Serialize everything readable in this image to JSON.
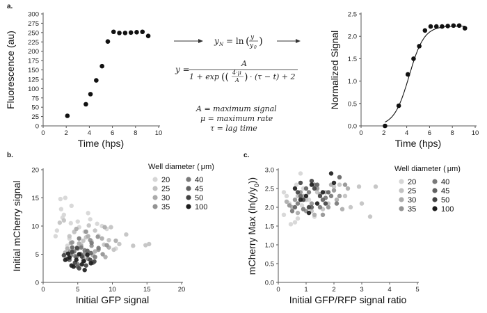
{
  "panel_labels": {
    "a": "a.",
    "b": "b.",
    "c": "c."
  },
  "equations": {
    "yN_lhs": "y",
    "yN_sub": "N",
    "yN_rhs": "= ln",
    "y_over": "y",
    "y0_under": "y",
    "y0_sub": "0",
    "y_lhs": "y =",
    "numer": "A",
    "denom_1": "1 + exp",
    "frac_n": "4·μ",
    "frac_d": "A",
    "denom_2": "· (τ − t) + 2",
    "def_A": "A = maximum signal",
    "def_mu": "μ = maximum rate",
    "def_tau": "τ = lag time"
  },
  "chart_data": [
    {
      "id": "a-left",
      "type": "scatter",
      "xlabel": "Time (hps)",
      "ylabel": "Fluorescence (au)",
      "xlim": [
        0,
        10
      ],
      "ylim": [
        0,
        300
      ],
      "xticks": [
        0,
        2,
        4,
        6,
        8,
        10
      ],
      "yticks": [
        0,
        25,
        50,
        75,
        100,
        125,
        150,
        175,
        200,
        225,
        250,
        275,
        300
      ],
      "x": [
        2.1,
        3.7,
        4.1,
        4.6,
        5.1,
        5.6,
        6.1,
        6.6,
        7.1,
        7.6,
        8.1,
        8.6,
        9.1
      ],
      "y": [
        27,
        58,
        85,
        122,
        160,
        226,
        252,
        249,
        249,
        250,
        251,
        252,
        241
      ]
    },
    {
      "id": "a-right",
      "type": "scatter+line",
      "xlabel": "Time (hps)",
      "ylabel": "Normalized Signal",
      "xlim": [
        0,
        10
      ],
      "ylim": [
        0,
        2.5
      ],
      "xticks": [
        0,
        2,
        4,
        6,
        8,
        10
      ],
      "yticks": [
        0.0,
        0.5,
        1.0,
        1.5,
        2.0,
        2.5
      ],
      "x": [
        2.1,
        3.3,
        4.1,
        4.6,
        5.1,
        5.6,
        6.1,
        6.6,
        7.1,
        7.6,
        8.1,
        8.6,
        9.1
      ],
      "y": [
        0.0,
        0.45,
        1.15,
        1.5,
        1.78,
        2.13,
        2.22,
        2.22,
        2.22,
        2.23,
        2.24,
        2.24,
        2.18
      ],
      "fit": {
        "A": 2.23,
        "mu": 0.85,
        "tau": 2.9,
        "t_range": [
          2.1,
          9.1
        ]
      }
    },
    {
      "id": "b",
      "type": "scatter",
      "xlabel": "Initial GFP signal",
      "ylabel": "Initial mCherry signal",
      "xlim": [
        0,
        20
      ],
      "ylim": [
        0,
        20
      ],
      "xticks": [
        0,
        5,
        10,
        15,
        20
      ],
      "yticks": [
        0,
        5,
        10,
        15,
        20
      ],
      "legend_title": "Well diameter (μm)",
      "legend_title_pre": "Well diameter (",
      "legend_title_unit": "μm",
      "legend_title_post": ")",
      "legend_location": "top-right",
      "series": [
        {
          "name": "20",
          "color": "#d6d6d6",
          "x": [
            2.5,
            3.2,
            4.1,
            3.0,
            6.5,
            7.8,
            5.2,
            2.8,
            8.5,
            4.5,
            3.8,
            9.2,
            6.0,
            2.0,
            5.5,
            7.0,
            4.0,
            3.5,
            1.8,
            6.8,
            10.5,
            8.0,
            2.6,
            5.0
          ],
          "y": [
            14.8,
            15.0,
            13.6,
            12.0,
            12.3,
            10.4,
            9.8,
            11.5,
            10.0,
            8.9,
            7.8,
            9.5,
            9.0,
            9.2,
            6.8,
            7.3,
            10.5,
            6.5,
            8.2,
            11.2,
            6.0,
            8.3,
            13.0,
            10.8
          ]
        },
        {
          "name": "25",
          "color": "#c2c2c2",
          "x": [
            3.0,
            4.5,
            6.2,
            9.5,
            11.0,
            13.0,
            14.8,
            3.8,
            7.5,
            5.8,
            10.2,
            12.0,
            2.4,
            8.8,
            6.6,
            4.9,
            15.3,
            9.8
          ],
          "y": [
            11.0,
            9.0,
            8.0,
            7.5,
            6.8,
            6.5,
            6.6,
            8.2,
            9.2,
            7.4,
            5.8,
            8.5,
            10.6,
            6.7,
            10.1,
            6.2,
            6.8,
            9.8
          ]
        },
        {
          "name": "30",
          "color": "#ababab",
          "x": [
            4.0,
            5.5,
            6.5,
            7.5,
            8.5,
            9.5,
            10.5,
            3.5,
            4.8,
            7.2,
            8.9,
            6.0,
            5.2,
            9.0,
            3.2
          ],
          "y": [
            7.0,
            6.5,
            8.2,
            5.5,
            7.8,
            6.2,
            7.4,
            6.0,
            9.5,
            4.8,
            9.8,
            5.2,
            6.9,
            4.5,
            5.3
          ]
        },
        {
          "name": "35",
          "color": "#939393",
          "x": [
            5.0,
            6.0,
            7.0,
            8.0,
            4.2,
            6.8,
            9.2,
            5.8,
            3.9,
            7.9,
            4.6,
            6.2,
            8.6
          ],
          "y": [
            6.0,
            5.0,
            6.5,
            5.8,
            7.1,
            7.5,
            6.6,
            4.3,
            5.5,
            8.1,
            4.7,
            9.0,
            5.0
          ]
        },
        {
          "name": "40",
          "color": "#7a7a7a",
          "x": [
            4.5,
            5.5,
            6.5,
            7.0,
            5.0,
            6.0,
            4.0,
            7.5,
            8.0,
            5.2
          ],
          "y": [
            5.5,
            6.2,
            4.2,
            7.0,
            3.2,
            5.7,
            4.8,
            4.5,
            6.1,
            7.8
          ]
        },
        {
          "name": "45",
          "color": "#626262",
          "x": [
            4.8,
            5.8,
            6.4,
            3.8,
            5.4,
            7.2,
            4.2,
            6.9,
            5.0
          ],
          "y": [
            4.5,
            3.8,
            5.6,
            4.0,
            5.0,
            3.5,
            6.2,
            5.2,
            2.8
          ]
        },
        {
          "name": "50",
          "color": "#434343",
          "x": [
            3.5,
            4.6,
            5.6,
            6.2,
            4.2,
            5.2,
            6.8,
            3.0,
            4.9,
            7.4
          ],
          "y": [
            4.2,
            3.5,
            4.6,
            3.0,
            5.4,
            2.5,
            4.0,
            4.8,
            6.1,
            3.7
          ]
        },
        {
          "name": "100",
          "color": "#1c1c1c",
          "x": [
            3.8,
            4.8,
            5.6,
            6.4,
            4.4,
            5.2,
            6.0,
            3.2,
            5.9,
            4.1,
            6.9,
            3.6
          ],
          "y": [
            4.4,
            4.0,
            3.2,
            4.9,
            2.8,
            5.0,
            2.2,
            4.0,
            3.8,
            3.0,
            3.4,
            5.1
          ]
        }
      ]
    },
    {
      "id": "c",
      "type": "scatter",
      "xlabel": "Initial GFP/RFP signal ratio",
      "ylabel": "mCherry Max (ln(y/y0))",
      "ylabel_pre": "mCherry Max (ln(y/y",
      "ylabel_sub": "0",
      "ylabel_post": "))",
      "xlim": [
        0,
        5
      ],
      "ylim": [
        0,
        3.0
      ],
      "xticks": [
        0,
        1,
        2,
        3,
        4,
        5
      ],
      "yticks": [
        0.0,
        0.5,
        1.0,
        1.5,
        2.0,
        2.5,
        3.0
      ],
      "legend_title": "Well diameter (μm)",
      "legend_title_pre": "Well diameter (",
      "legend_title_unit": "μm",
      "legend_title_post": ")",
      "legend_location": "top-right",
      "series": [
        {
          "name": "20",
          "color": "#d6d6d6",
          "x": [
            0.2,
            0.4,
            0.6,
            0.8,
            0.3,
            0.5,
            0.9,
            0.7,
            1.1,
            0.2,
            0.45,
            0.65,
            1.3,
            0.85
          ],
          "y": [
            1.8,
            2.1,
            1.6,
            2.9,
            2.3,
            1.9,
            2.5,
            1.7,
            2.2,
            2.4,
            1.55,
            2.6,
            1.75,
            2.05
          ]
        },
        {
          "name": "25",
          "color": "#c2c2c2",
          "x": [
            1.0,
            1.4,
            1.8,
            2.2,
            2.6,
            3.0,
            3.5,
            0.7,
            1.6,
            2.4,
            2.9,
            3.3,
            1.2,
            2.0
          ],
          "y": [
            2.2,
            2.4,
            2.1,
            2.6,
            2.0,
            2.1,
            2.55,
            2.3,
            1.95,
            2.3,
            2.55,
            1.75,
            1.9,
            2.55
          ]
        },
        {
          "name": "30",
          "color": "#ababab",
          "x": [
            0.5,
            0.9,
            1.3,
            1.7,
            2.1,
            2.5,
            0.3,
            1.1,
            1.9,
            2.3,
            0.7,
            1.5
          ],
          "y": [
            2.0,
            2.3,
            1.8,
            2.4,
            2.2,
            2.5,
            2.15,
            2.0,
            2.6,
            1.95,
            1.85,
            2.35
          ]
        },
        {
          "name": "35",
          "color": "#939393",
          "x": [
            0.6,
            1.0,
            1.4,
            1.8,
            2.2,
            0.8,
            1.2,
            1.6,
            2.0,
            0.4,
            2.4
          ],
          "y": [
            2.2,
            1.9,
            2.5,
            2.0,
            2.3,
            2.4,
            2.1,
            1.8,
            2.45,
            2.05,
            2.6
          ]
        },
        {
          "name": "40",
          "color": "#7a7a7a",
          "x": [
            0.7,
            1.1,
            1.5,
            1.9,
            0.9,
            1.3,
            1.7,
            0.5,
            2.1
          ],
          "y": [
            2.1,
            2.4,
            2.0,
            2.3,
            1.95,
            2.6,
            2.25,
            1.9,
            2.1
          ]
        },
        {
          "name": "45",
          "color": "#626262",
          "x": [
            0.8,
            1.2,
            1.6,
            1.0,
            1.4,
            0.6,
            1.8,
            2.2
          ],
          "y": [
            2.3,
            2.0,
            2.2,
            2.5,
            2.6,
            2.0,
            2.4,
            2.8
          ]
        },
        {
          "name": "50",
          "color": "#434343",
          "x": [
            0.9,
            1.3,
            1.1,
            0.7,
            1.5,
            1.7,
            0.8,
            1.2
          ],
          "y": [
            2.2,
            2.5,
            2.0,
            2.4,
            2.3,
            2.1,
            2.65,
            2.7
          ]
        },
        {
          "name": "100",
          "color": "#1c1c1c",
          "x": [
            1.0,
            1.4,
            1.2,
            0.8,
            1.6,
            1.9,
            2.0,
            1.1,
            0.6
          ],
          "y": [
            2.3,
            2.1,
            2.6,
            2.2,
            2.4,
            2.9,
            2.65,
            1.85,
            2.5
          ]
        }
      ]
    }
  ]
}
